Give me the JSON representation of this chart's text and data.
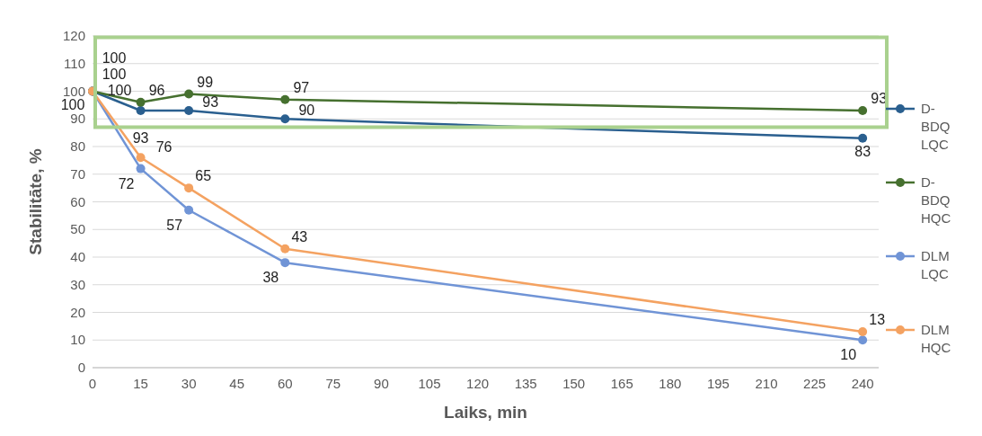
{
  "chart_data": {
    "type": "line",
    "xlabel": "Laiks, min",
    "ylabel": "Stabilitāte, %",
    "x": [
      0,
      15,
      30,
      60,
      240
    ],
    "series": [
      {
        "name": "D-BDQ LQC",
        "color": "#2a5f8f",
        "values": [
          100,
          93,
          93,
          90,
          83
        ]
      },
      {
        "name": "D-BDQ HQC",
        "color": "#46702f",
        "values": [
          100,
          96,
          99,
          97,
          93
        ]
      },
      {
        "name": "DLM LQC",
        "color": "#7094d6",
        "values": [
          100,
          72,
          57,
          38,
          10
        ]
      },
      {
        "name": "DLM HQC",
        "color": "#f4a261",
        "values": [
          100,
          76,
          65,
          43,
          13
        ]
      }
    ],
    "xlim": [
      0,
      245
    ],
    "xticks": [
      0,
      15,
      30,
      45,
      60,
      75,
      90,
      105,
      120,
      135,
      150,
      165,
      180,
      195,
      210,
      225,
      240
    ],
    "ylim": [
      0,
      120
    ],
    "yticks": [
      0,
      10,
      20,
      30,
      40,
      50,
      60,
      70,
      80,
      90,
      100,
      110,
      120
    ],
    "grid": "y",
    "legend": "right",
    "marker": "circle",
    "line_style": "solid",
    "data_labels": true
  }
}
